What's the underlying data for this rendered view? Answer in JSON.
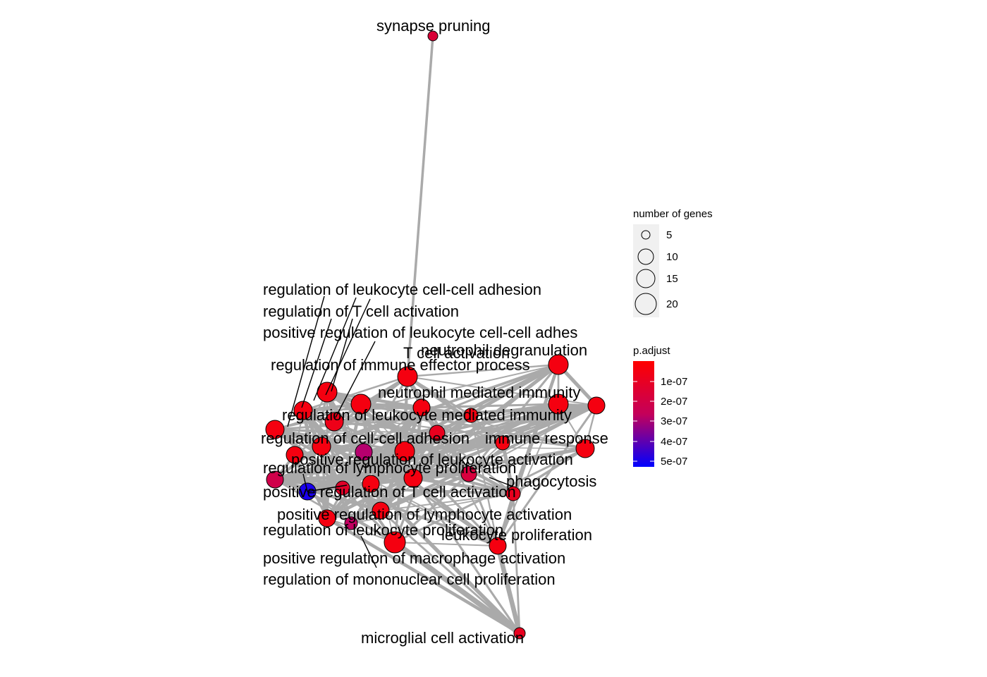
{
  "legend": {
    "size_title": "number of genes",
    "size_items": [
      {
        "label": "5",
        "value": 5
      },
      {
        "label": "10",
        "value": 10
      },
      {
        "label": "15",
        "value": 15
      },
      {
        "label": "20",
        "value": 20
      }
    ],
    "color_title": "p.adjust",
    "color_ticks": [
      {
        "label": "1e-07",
        "value": 1e-07
      },
      {
        "label": "2e-07",
        "value": 2e-07
      },
      {
        "label": "3e-07",
        "value": 3e-07
      },
      {
        "label": "4e-07",
        "value": 4e-07
      },
      {
        "label": "5e-07",
        "value": 5e-07
      }
    ],
    "color_range": {
      "high": "#ff0000",
      "low": "#0000ff"
    }
  },
  "network": {
    "node_stroke": "#000000",
    "edge_color": "#aaaaaa",
    "labels": [
      "synapse pruning",
      "regulation of leukocyte cell-cell adhesion",
      "regulation of T cell activation",
      "positive regulation of leukocyte cell-cell adhes",
      "T cell activation",
      "neutrophil degranulation",
      "regulation of immune effector process",
      "neutrophil mediated immunity",
      "regulation of leukocyte mediated immunity",
      "regulation of cell-cell adhesion",
      "immune response",
      "positive regulation of leukocyte activation",
      "regulation of lymphocyte proliferation",
      "phagocytosis",
      "positive regulation of T cell activation",
      "positive regulation of lymphocyte activation",
      "regulation of leukocyte proliferation",
      "leukocyte proliferation",
      "positive regulation of macrophage activation",
      "regulation of mononuclear cell proliferation",
      "microglial cell activation"
    ]
  }
}
